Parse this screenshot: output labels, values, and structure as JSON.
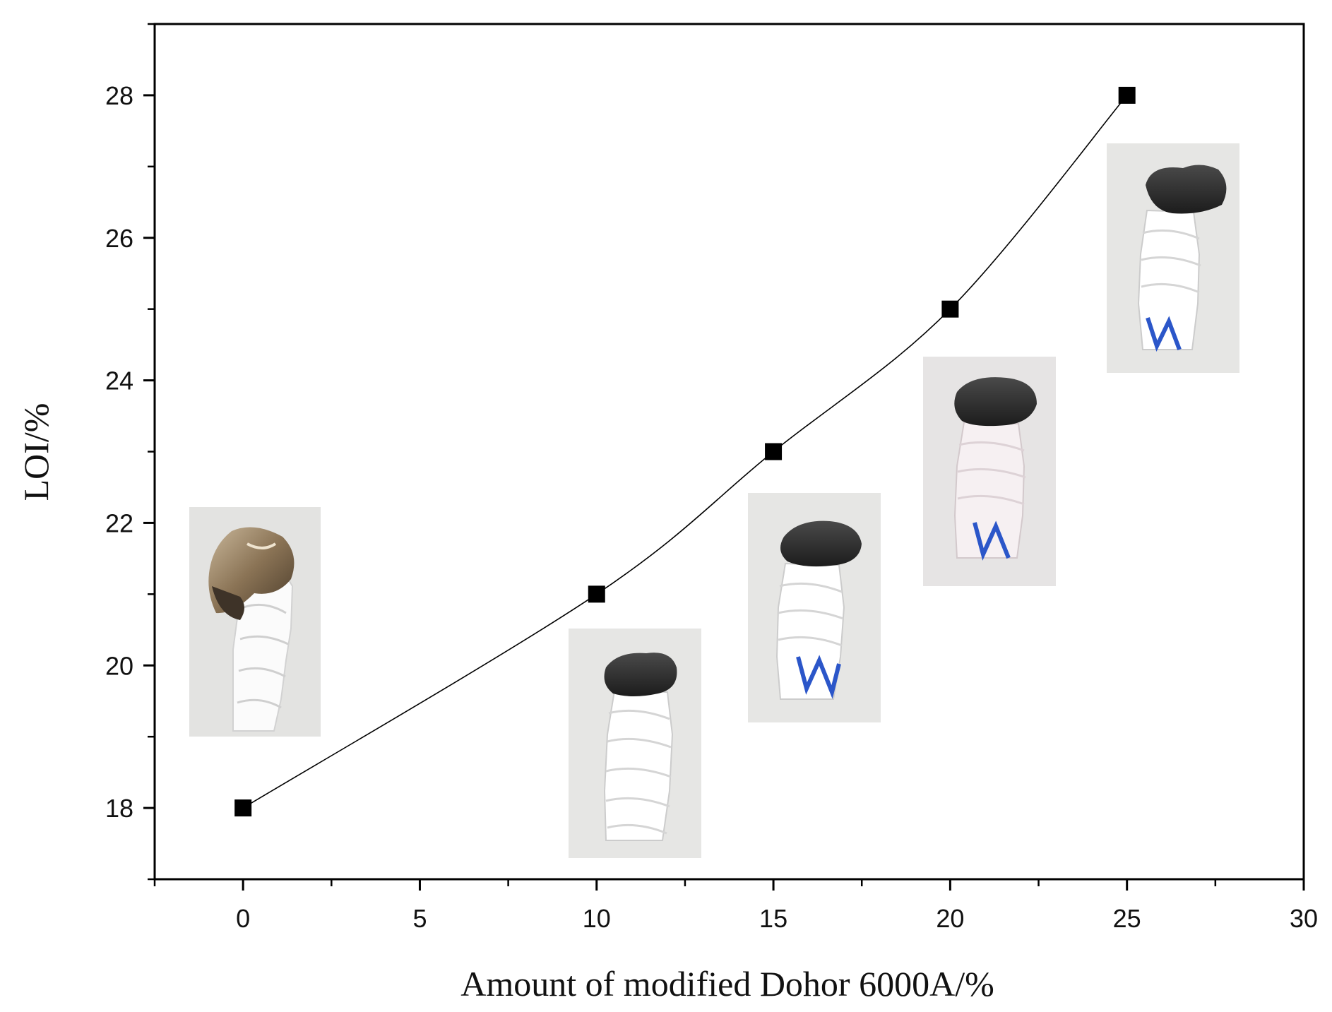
{
  "chart_data": {
    "type": "scatter",
    "title": "",
    "xlabel": "Amount of modified Dohor 6000A/%",
    "ylabel": "LOI/%",
    "xlim": [
      -2.5,
      30
    ],
    "ylim": [
      17,
      29
    ],
    "xticks": [
      0,
      5,
      10,
      15,
      20,
      25,
      30
    ],
    "yticks": [
      18,
      20,
      22,
      24,
      26,
      28
    ],
    "grid": false,
    "legend": "none",
    "line_connected": true,
    "marker": "square",
    "series": [
      {
        "x": [
          0,
          10,
          15,
          20,
          25
        ],
        "y": [
          18,
          21,
          23,
          25,
          28
        ]
      }
    ],
    "annotations": [
      {
        "type": "photo",
        "x": 0,
        "depicts": "melted translucent braided sample with brown dripping residue"
      },
      {
        "type": "photo",
        "x": 10,
        "depicts": "white braided sample with black char cap"
      },
      {
        "type": "photo",
        "x": 15,
        "depicts": "white braided sample with black char cap and blue thread"
      },
      {
        "type": "photo",
        "x": 20,
        "depicts": "pinkish-white braided sample with black char cap and blue thread"
      },
      {
        "type": "photo",
        "x": 25,
        "depicts": "white braided sample with large black char cap and blue end"
      }
    ]
  }
}
